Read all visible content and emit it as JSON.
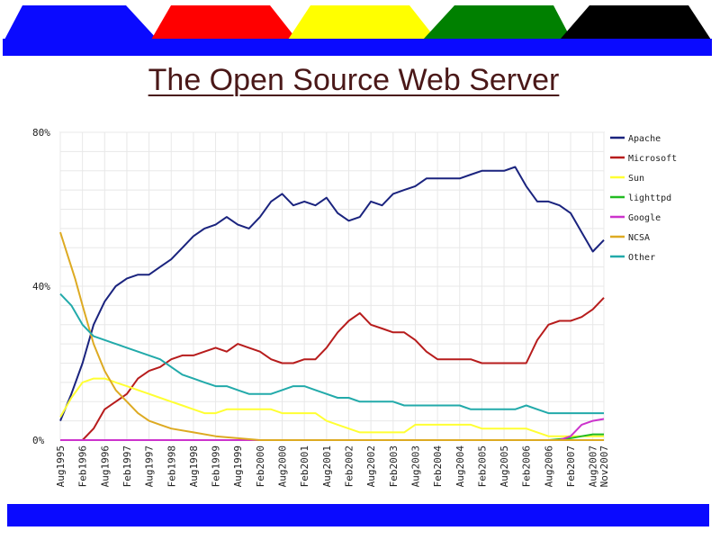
{
  "slide": {
    "title": "The Open Source Web Server",
    "tab_colors": [
      "#0a0aff",
      "#ff0000",
      "#ffff00",
      "#008000",
      "#000000"
    ],
    "bar_color": "#0a0aff"
  },
  "chart_data": {
    "type": "line",
    "title": "",
    "xlabel": "",
    "ylabel": "",
    "x_range": [
      "Aug1995",
      "Nov2007"
    ],
    "ylim": [
      0,
      80
    ],
    "y_ticks": [
      "0%",
      "40%",
      "80%"
    ],
    "y_tick_values": [
      0,
      40,
      80
    ],
    "x_ticks": [
      "Aug1995",
      "Feb1996",
      "Aug1996",
      "Feb1997",
      "Aug1997",
      "Feb1998",
      "Aug1998",
      "Feb1999",
      "Aug1999",
      "Feb2000",
      "Aug2000",
      "Feb2001",
      "Aug2001",
      "Feb2002",
      "Aug2002",
      "Feb2003",
      "Aug2003",
      "Feb2004",
      "Aug2004",
      "Feb2005",
      "Aug2005",
      "Feb2006",
      "Aug2006",
      "Feb2007",
      "Aug2007",
      "Nov2007"
    ],
    "grid": true,
    "legend_position": "right",
    "series": [
      {
        "name": "Apache",
        "color": "#1a237e",
        "points": [
          [
            "1995-08",
            5
          ],
          [
            "1995-11",
            12
          ],
          [
            "1996-02",
            20
          ],
          [
            "1996-05",
            30
          ],
          [
            "1996-08",
            36
          ],
          [
            "1996-11",
            40
          ],
          [
            "1997-02",
            42
          ],
          [
            "1997-05",
            43
          ],
          [
            "1997-08",
            43
          ],
          [
            "1997-11",
            45
          ],
          [
            "1998-02",
            47
          ],
          [
            "1998-05",
            50
          ],
          [
            "1998-08",
            53
          ],
          [
            "1998-11",
            55
          ],
          [
            "1999-02",
            56
          ],
          [
            "1999-05",
            58
          ],
          [
            "1999-08",
            56
          ],
          [
            "1999-11",
            55
          ],
          [
            "2000-02",
            58
          ],
          [
            "2000-05",
            62
          ],
          [
            "2000-08",
            64
          ],
          [
            "2000-11",
            61
          ],
          [
            "2001-02",
            62
          ],
          [
            "2001-05",
            61
          ],
          [
            "2001-08",
            63
          ],
          [
            "2001-11",
            59
          ],
          [
            "2002-02",
            57
          ],
          [
            "2002-05",
            58
          ],
          [
            "2002-08",
            62
          ],
          [
            "2002-11",
            61
          ],
          [
            "2003-02",
            64
          ],
          [
            "2003-05",
            65
          ],
          [
            "2003-08",
            66
          ],
          [
            "2003-11",
            68
          ],
          [
            "2004-02",
            68
          ],
          [
            "2004-05",
            68
          ],
          [
            "2004-08",
            68
          ],
          [
            "2004-11",
            69
          ],
          [
            "2005-02",
            70
          ],
          [
            "2005-05",
            70
          ],
          [
            "2005-08",
            70
          ],
          [
            "2005-11",
            71
          ],
          [
            "2006-02",
            66
          ],
          [
            "2006-05",
            62
          ],
          [
            "2006-08",
            62
          ],
          [
            "2006-11",
            61
          ],
          [
            "2007-02",
            59
          ],
          [
            "2007-05",
            54
          ],
          [
            "2007-08",
            49
          ],
          [
            "2007-11",
            52
          ]
        ]
      },
      {
        "name": "Microsoft",
        "color": "#b71c1c",
        "points": [
          [
            "1995-08",
            0
          ],
          [
            "1996-02",
            0
          ],
          [
            "1996-05",
            3
          ],
          [
            "1996-08",
            8
          ],
          [
            "1996-11",
            10
          ],
          [
            "1997-02",
            12
          ],
          [
            "1997-05",
            16
          ],
          [
            "1997-08",
            18
          ],
          [
            "1997-11",
            19
          ],
          [
            "1998-02",
            21
          ],
          [
            "1998-05",
            22
          ],
          [
            "1998-08",
            22
          ],
          [
            "1998-11",
            23
          ],
          [
            "1999-02",
            24
          ],
          [
            "1999-05",
            23
          ],
          [
            "1999-08",
            25
          ],
          [
            "1999-11",
            24
          ],
          [
            "2000-02",
            23
          ],
          [
            "2000-05",
            21
          ],
          [
            "2000-08",
            20
          ],
          [
            "2000-11",
            20
          ],
          [
            "2001-02",
            21
          ],
          [
            "2001-05",
            21
          ],
          [
            "2001-08",
            24
          ],
          [
            "2001-11",
            28
          ],
          [
            "2002-02",
            31
          ],
          [
            "2002-05",
            33
          ],
          [
            "2002-08",
            30
          ],
          [
            "2002-11",
            29
          ],
          [
            "2003-02",
            28
          ],
          [
            "2003-05",
            28
          ],
          [
            "2003-08",
            26
          ],
          [
            "2003-11",
            23
          ],
          [
            "2004-02",
            21
          ],
          [
            "2004-05",
            21
          ],
          [
            "2004-08",
            21
          ],
          [
            "2004-11",
            21
          ],
          [
            "2005-02",
            20
          ],
          [
            "2005-05",
            20
          ],
          [
            "2005-08",
            20
          ],
          [
            "2005-11",
            20
          ],
          [
            "2006-02",
            20
          ],
          [
            "2006-05",
            26
          ],
          [
            "2006-08",
            30
          ],
          [
            "2006-11",
            31
          ],
          [
            "2007-02",
            31
          ],
          [
            "2007-05",
            32
          ],
          [
            "2007-08",
            34
          ],
          [
            "2007-11",
            37
          ]
        ]
      },
      {
        "name": "Sun",
        "color": "#ffff33",
        "points": [
          [
            "1995-08",
            6
          ],
          [
            "1995-11",
            11
          ],
          [
            "1996-02",
            15
          ],
          [
            "1996-05",
            16
          ],
          [
            "1996-08",
            16
          ],
          [
            "1996-11",
            15
          ],
          [
            "1997-02",
            14
          ],
          [
            "1997-05",
            13
          ],
          [
            "1997-08",
            12
          ],
          [
            "1997-11",
            11
          ],
          [
            "1998-02",
            10
          ],
          [
            "1998-05",
            9
          ],
          [
            "1998-08",
            8
          ],
          [
            "1998-11",
            7
          ],
          [
            "1999-02",
            7
          ],
          [
            "1999-05",
            8
          ],
          [
            "1999-08",
            8
          ],
          [
            "1999-11",
            8
          ],
          [
            "2000-02",
            8
          ],
          [
            "2000-05",
            8
          ],
          [
            "2000-08",
            7
          ],
          [
            "2000-11",
            7
          ],
          [
            "2001-02",
            7
          ],
          [
            "2001-05",
            7
          ],
          [
            "2001-08",
            5
          ],
          [
            "2001-11",
            4
          ],
          [
            "2002-02",
            3
          ],
          [
            "2002-05",
            2
          ],
          [
            "2002-08",
            2
          ],
          [
            "2002-11",
            2
          ],
          [
            "2003-02",
            2
          ],
          [
            "2003-05",
            2
          ],
          [
            "2003-08",
            4
          ],
          [
            "2003-11",
            4
          ],
          [
            "2004-02",
            4
          ],
          [
            "2004-05",
            4
          ],
          [
            "2004-08",
            4
          ],
          [
            "2004-11",
            4
          ],
          [
            "2005-02",
            3
          ],
          [
            "2005-05",
            3
          ],
          [
            "2005-08",
            3
          ],
          [
            "2005-11",
            3
          ],
          [
            "2006-02",
            3
          ],
          [
            "2006-05",
            2
          ],
          [
            "2006-08",
            1
          ],
          [
            "2006-11",
            1
          ],
          [
            "2007-02",
            1
          ],
          [
            "2007-05",
            1
          ],
          [
            "2007-08",
            1
          ],
          [
            "2007-11",
            1
          ]
        ]
      },
      {
        "name": "lighttpd",
        "color": "#22bb22",
        "points": [
          [
            "1995-08",
            0
          ],
          [
            "2006-02",
            0
          ],
          [
            "2006-08",
            0
          ],
          [
            "2007-02",
            0.5
          ],
          [
            "2007-05",
            1
          ],
          [
            "2007-08",
            1.5
          ],
          [
            "2007-11",
            1.5
          ]
        ]
      },
      {
        "name": "Google",
        "color": "#cc33cc",
        "points": [
          [
            "1995-08",
            0
          ],
          [
            "2006-02",
            0
          ],
          [
            "2006-11",
            0
          ],
          [
            "2007-02",
            1
          ],
          [
            "2007-05",
            4
          ],
          [
            "2007-08",
            5
          ],
          [
            "2007-11",
            5.5
          ]
        ]
      },
      {
        "name": "NCSA",
        "color": "#ddaa22",
        "points": [
          [
            "1995-08",
            54
          ],
          [
            "1995-10",
            48
          ],
          [
            "1995-12",
            42
          ],
          [
            "1996-02",
            35
          ],
          [
            "1996-05",
            25
          ],
          [
            "1996-08",
            18
          ],
          [
            "1996-11",
            13
          ],
          [
            "1997-02",
            10
          ],
          [
            "1997-05",
            7
          ],
          [
            "1997-08",
            5
          ],
          [
            "1997-11",
            4
          ],
          [
            "1998-02",
            3
          ],
          [
            "1998-08",
            2
          ],
          [
            "1999-02",
            1
          ],
          [
            "1999-08",
            0.5
          ],
          [
            "2000-02",
            0
          ],
          [
            "2007-11",
            0
          ]
        ]
      },
      {
        "name": "Other",
        "color": "#22aaaa",
        "points": [
          [
            "1995-08",
            38
          ],
          [
            "1995-11",
            35
          ],
          [
            "1996-02",
            30
          ],
          [
            "1996-05",
            27
          ],
          [
            "1996-08",
            26
          ],
          [
            "1996-11",
            25
          ],
          [
            "1997-02",
            24
          ],
          [
            "1997-05",
            23
          ],
          [
            "1997-08",
            22
          ],
          [
            "1997-11",
            21
          ],
          [
            "1998-02",
            19
          ],
          [
            "1998-05",
            17
          ],
          [
            "1998-08",
            16
          ],
          [
            "1998-11",
            15
          ],
          [
            "1999-02",
            14
          ],
          [
            "1999-05",
            14
          ],
          [
            "1999-08",
            13
          ],
          [
            "1999-11",
            12
          ],
          [
            "2000-02",
            12
          ],
          [
            "2000-05",
            12
          ],
          [
            "2000-08",
            13
          ],
          [
            "2000-11",
            14
          ],
          [
            "2001-02",
            14
          ],
          [
            "2001-05",
            13
          ],
          [
            "2001-08",
            12
          ],
          [
            "2001-11",
            11
          ],
          [
            "2002-02",
            11
          ],
          [
            "2002-05",
            10
          ],
          [
            "2002-08",
            10
          ],
          [
            "2002-11",
            10
          ],
          [
            "2003-02",
            10
          ],
          [
            "2003-05",
            9
          ],
          [
            "2003-08",
            9
          ],
          [
            "2003-11",
            9
          ],
          [
            "2004-02",
            9
          ],
          [
            "2004-05",
            9
          ],
          [
            "2004-08",
            9
          ],
          [
            "2004-11",
            8
          ],
          [
            "2005-02",
            8
          ],
          [
            "2005-05",
            8
          ],
          [
            "2005-08",
            8
          ],
          [
            "2005-11",
            8
          ],
          [
            "2006-02",
            9
          ],
          [
            "2006-05",
            8
          ],
          [
            "2006-08",
            7
          ],
          [
            "2006-11",
            7
          ],
          [
            "2007-02",
            7
          ],
          [
            "2007-05",
            7
          ],
          [
            "2007-08",
            7
          ],
          [
            "2007-11",
            7
          ]
        ]
      }
    ]
  }
}
